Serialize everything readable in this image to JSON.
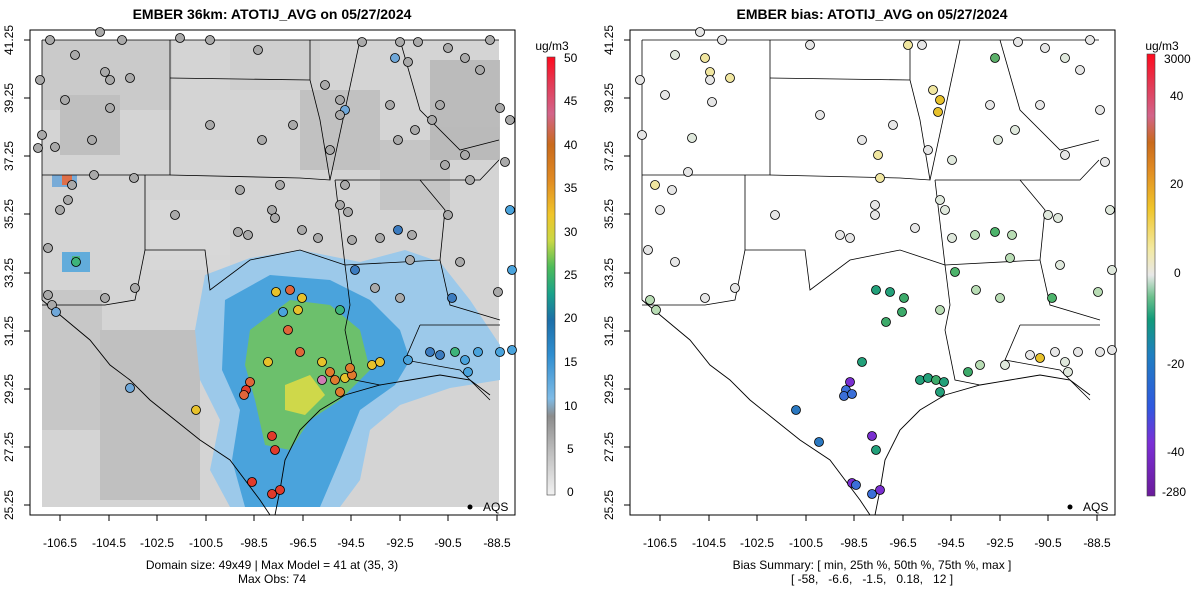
{
  "panel_left": {
    "title": "EMBER 36km: ATOTIJ_AVG on 05/27/2024",
    "footer_line1": "Domain size: 49x49 | Max Model = 41 at (35, 3)",
    "footer_line2": "Max Obs: 74",
    "legend_label": "AQS",
    "colorbar_unit": "ug/m3",
    "colorbar_ticks": [
      "0",
      "5",
      "10",
      "15",
      "20",
      "25",
      "30",
      "35",
      "40",
      "45",
      "50"
    ]
  },
  "panel_right": {
    "title": "EMBER bias: ATOTIJ_AVG on 05/27/2024",
    "footer_line1": "Bias Summary: [ min, 25th %, 50th %, 75th %, max ]",
    "footer_line2": "[ -58,   -6.6,   -1.5,   0.18,   12 ]",
    "legend_label": "AQS",
    "colorbar_unit": "ug/m3",
    "colorbar_ticks": [
      "3000",
      "40",
      "20",
      "0",
      "-20",
      "-40",
      "-280"
    ]
  },
  "axes": {
    "x_ticks": [
      "-106.5",
      "-104.5",
      "-102.5",
      "-100.5",
      "-98.5",
      "-96.5",
      "-94.5",
      "-92.5",
      "-90.5",
      "-88.5"
    ],
    "y_ticks": [
      "25.25",
      "27.25",
      "29.25",
      "31.25",
      "33.25",
      "35.25",
      "37.25",
      "39.25",
      "41.25"
    ]
  },
  "colors": {
    "land": "#d6d6d6",
    "plume_light": "#9cc9ea",
    "plume_blue": "#4aa3dc",
    "plume_green": "#6cc06c",
    "plume_yellow": "#cfd84a",
    "site_default": "#a9a9a9"
  }
}
